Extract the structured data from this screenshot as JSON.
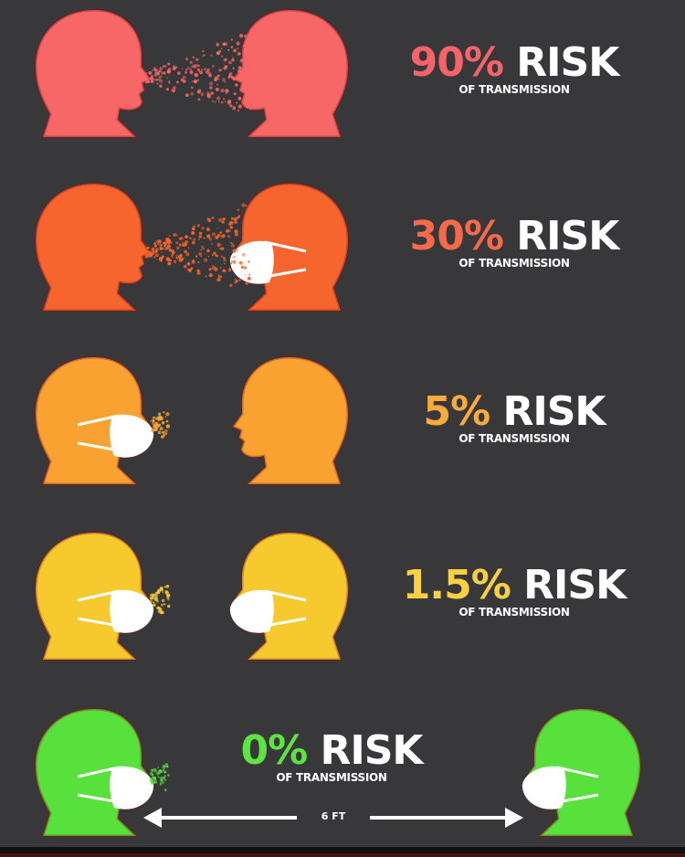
{
  "rows": [
    {
      "percent": "90%",
      "risk": "RISK",
      "subtitle": "OF TRANSMISSION",
      "color": "#f76767",
      "text_color": "#f7636b",
      "speaker_mask": false,
      "listener_mask": false,
      "spray": "long"
    },
    {
      "percent": "30%",
      "risk": "RISK",
      "subtitle": "OF TRANSMISSION",
      "color": "#f7652e",
      "text_color": "#f6694a",
      "speaker_mask": false,
      "listener_mask": true,
      "spray": "long"
    },
    {
      "percent": "5%",
      "risk": "RISK",
      "subtitle": "OF TRANSMISSION",
      "color": "#f9a232",
      "text_color": "#f8aa3c",
      "speaker_mask": true,
      "listener_mask": false,
      "spray": "short"
    },
    {
      "percent": "1.5%",
      "risk": "RISK",
      "subtitle": "OF TRANSMISSION",
      "color": "#f6c92f",
      "text_color": "#f7d142",
      "speaker_mask": true,
      "listener_mask": true,
      "spray": "short"
    },
    {
      "percent": "0%",
      "risk": "RISK",
      "subtitle": "OF TRANSMISSION",
      "color": "#58e03c",
      "text_color": "#5ee342",
      "speaker_mask": true,
      "listener_mask": true,
      "spray": "short"
    }
  ],
  "distance": {
    "label": "6 FT",
    "icon": "double-arrow-icon"
  },
  "background": "#38383a"
}
